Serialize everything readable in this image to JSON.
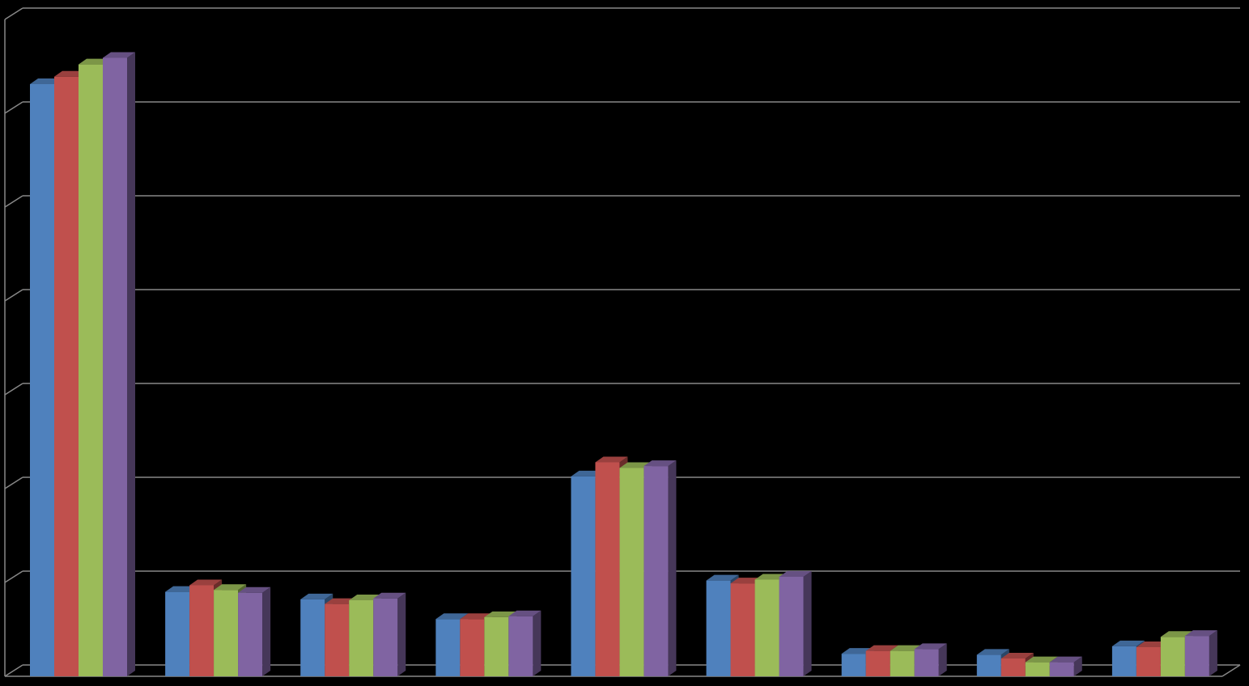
{
  "chart_data": {
    "type": "bar3d",
    "categories": [
      null,
      null,
      null,
      null,
      null,
      null,
      null,
      null,
      null
    ],
    "series": [
      {
        "color": "#4f81bd",
        "values": [
          6.31,
          0.9,
          0.82,
          0.61,
          2.13,
          1.02,
          0.24,
          0.23,
          0.32
        ]
      },
      {
        "color": "#c0504d",
        "values": [
          6.39,
          0.97,
          0.77,
          0.61,
          2.28,
          0.99,
          0.27,
          0.19,
          0.31
        ]
      },
      {
        "color": "#9bbb59",
        "values": [
          6.52,
          0.92,
          0.81,
          0.63,
          2.22,
          1.03,
          0.27,
          0.15,
          0.42
        ]
      },
      {
        "color": "#8064a2",
        "values": [
          6.59,
          0.89,
          0.83,
          0.64,
          2.24,
          1.06,
          0.29,
          0.15,
          0.43
        ]
      }
    ],
    "ylim": [
      0,
      7
    ],
    "yticks": [
      0,
      1,
      2,
      3,
      4,
      5,
      6,
      7
    ],
    "grid": true
  }
}
